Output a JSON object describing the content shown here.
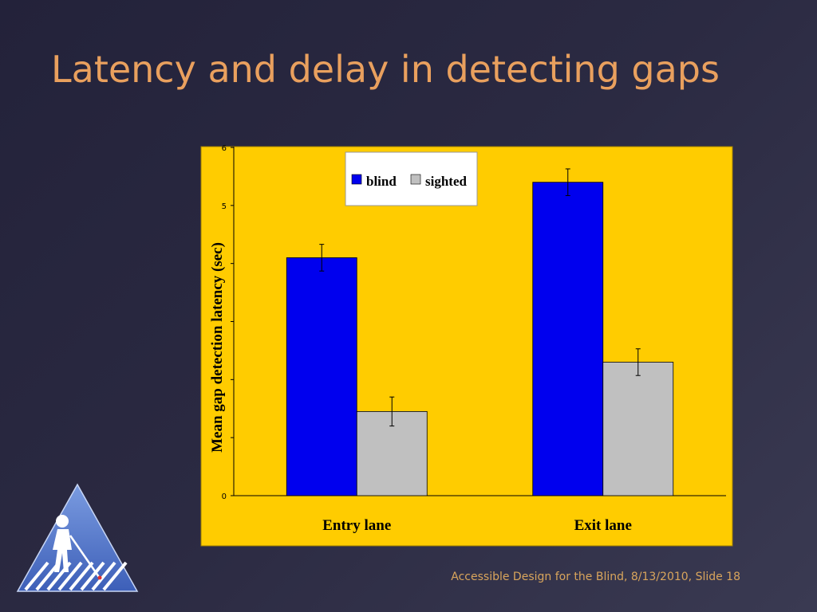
{
  "slide": {
    "title": "Latency and delay in detecting gaps",
    "footer": "Accessible Design for the Blind, 8/13/2010, Slide 18"
  },
  "colors": {
    "background": "#2b2a42",
    "title": "#e9a05e",
    "chart_bg": "#ffcc00",
    "blind": "#0000ee",
    "sighted": "#c0c0c0"
  },
  "logo": {
    "icon": "pedestrian-with-cane-crosswalk-icon"
  },
  "chart_data": {
    "type": "bar",
    "title": "",
    "xlabel": "",
    "ylabel": "Mean gap detection latency (sec)",
    "categories": [
      "Entry lane",
      "Exit lane"
    ],
    "series": [
      {
        "name": "blind",
        "values": [
          4.1,
          5.4
        ],
        "errors": [
          0.23,
          0.23
        ]
      },
      {
        "name": "sighted",
        "values": [
          1.45,
          2.3
        ],
        "errors": [
          0.25,
          0.23
        ]
      }
    ],
    "ylim": [
      0,
      6
    ],
    "yticks": [
      0,
      1,
      2,
      3,
      4,
      5,
      6
    ],
    "ytick_labels": [
      "0",
      "",
      "",
      "",
      "",
      "5",
      "6"
    ],
    "legend_position": "top-center",
    "grid": false
  }
}
